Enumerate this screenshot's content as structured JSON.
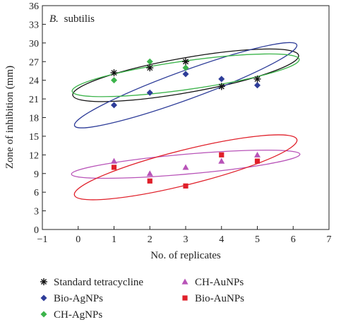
{
  "chart_data": {
    "type": "scatter",
    "annotation": "B. subtilis",
    "annotation_genus": "B.",
    "annotation_species": "subtilis",
    "xlabel": "No. of replicates",
    "ylabel": "Zone of inhibition (mm)",
    "xlim": [
      -1,
      7
    ],
    "ylim": [
      0,
      36
    ],
    "xticks": [
      "−1",
      "0",
      "1",
      "2",
      "3",
      "4",
      "5",
      "6",
      "7"
    ],
    "yticks": [
      "0",
      "3",
      "6",
      "9",
      "12",
      "15",
      "18",
      "21",
      "24",
      "27",
      "30",
      "33",
      "36"
    ],
    "grid": false,
    "legend_position": "bottom",
    "series": [
      {
        "name": "Standard tetracycline",
        "marker": "asterisk",
        "color": "#111111",
        "points": [
          [
            1,
            25.2
          ],
          [
            2,
            26
          ],
          [
            3,
            27
          ],
          [
            4,
            23
          ],
          [
            5,
            24.2
          ]
        ]
      },
      {
        "name": "Bio-AgNPs",
        "marker": "diamond",
        "color": "#2e3d99",
        "points": [
          [
            1,
            20
          ],
          [
            2,
            22
          ],
          [
            3,
            25
          ],
          [
            4,
            24.2
          ],
          [
            5,
            23.2
          ]
        ]
      },
      {
        "name": "CH-AgNPs",
        "marker": "diamond",
        "color": "#3cb44b",
        "points": [
          [
            1,
            24
          ],
          [
            2,
            27
          ],
          [
            3,
            26
          ]
        ]
      },
      {
        "name": "CH-AuNPs",
        "marker": "triangle",
        "color": "#b853b8",
        "points": [
          [
            1,
            11
          ],
          [
            2,
            9
          ],
          [
            3,
            10
          ],
          [
            4,
            11
          ],
          [
            5,
            12
          ]
        ]
      },
      {
        "name": "Bio-AuNPs",
        "marker": "square",
        "color": "#e0202a",
        "points": [
          [
            1,
            10
          ],
          [
            2,
            7.8
          ],
          [
            3,
            7
          ],
          [
            4,
            12
          ],
          [
            5,
            11
          ]
        ]
      }
    ],
    "ellipses": [
      {
        "color": "#111111",
        "cx": 3,
        "cy": 24.8,
        "rx": 3.2,
        "ry": 2.8,
        "angle_deg": -10
      },
      {
        "color": "#2e3d99",
        "cx": 3,
        "cy": 23.2,
        "rx": 3.3,
        "ry": 2.3,
        "angle_deg": -20
      },
      {
        "color": "#3cb44b",
        "cx": 3,
        "cy": 24.8,
        "rx": 3.2,
        "ry": 2.3,
        "angle_deg": -8
      },
      {
        "color": "#b853b8",
        "cx": 3,
        "cy": 10.5,
        "rx": 3.2,
        "ry": 1.6,
        "angle_deg": -5
      },
      {
        "color": "#e0202a",
        "cx": 3,
        "cy": 10,
        "rx": 3.2,
        "ry": 2.8,
        "angle_deg": -14
      }
    ]
  }
}
